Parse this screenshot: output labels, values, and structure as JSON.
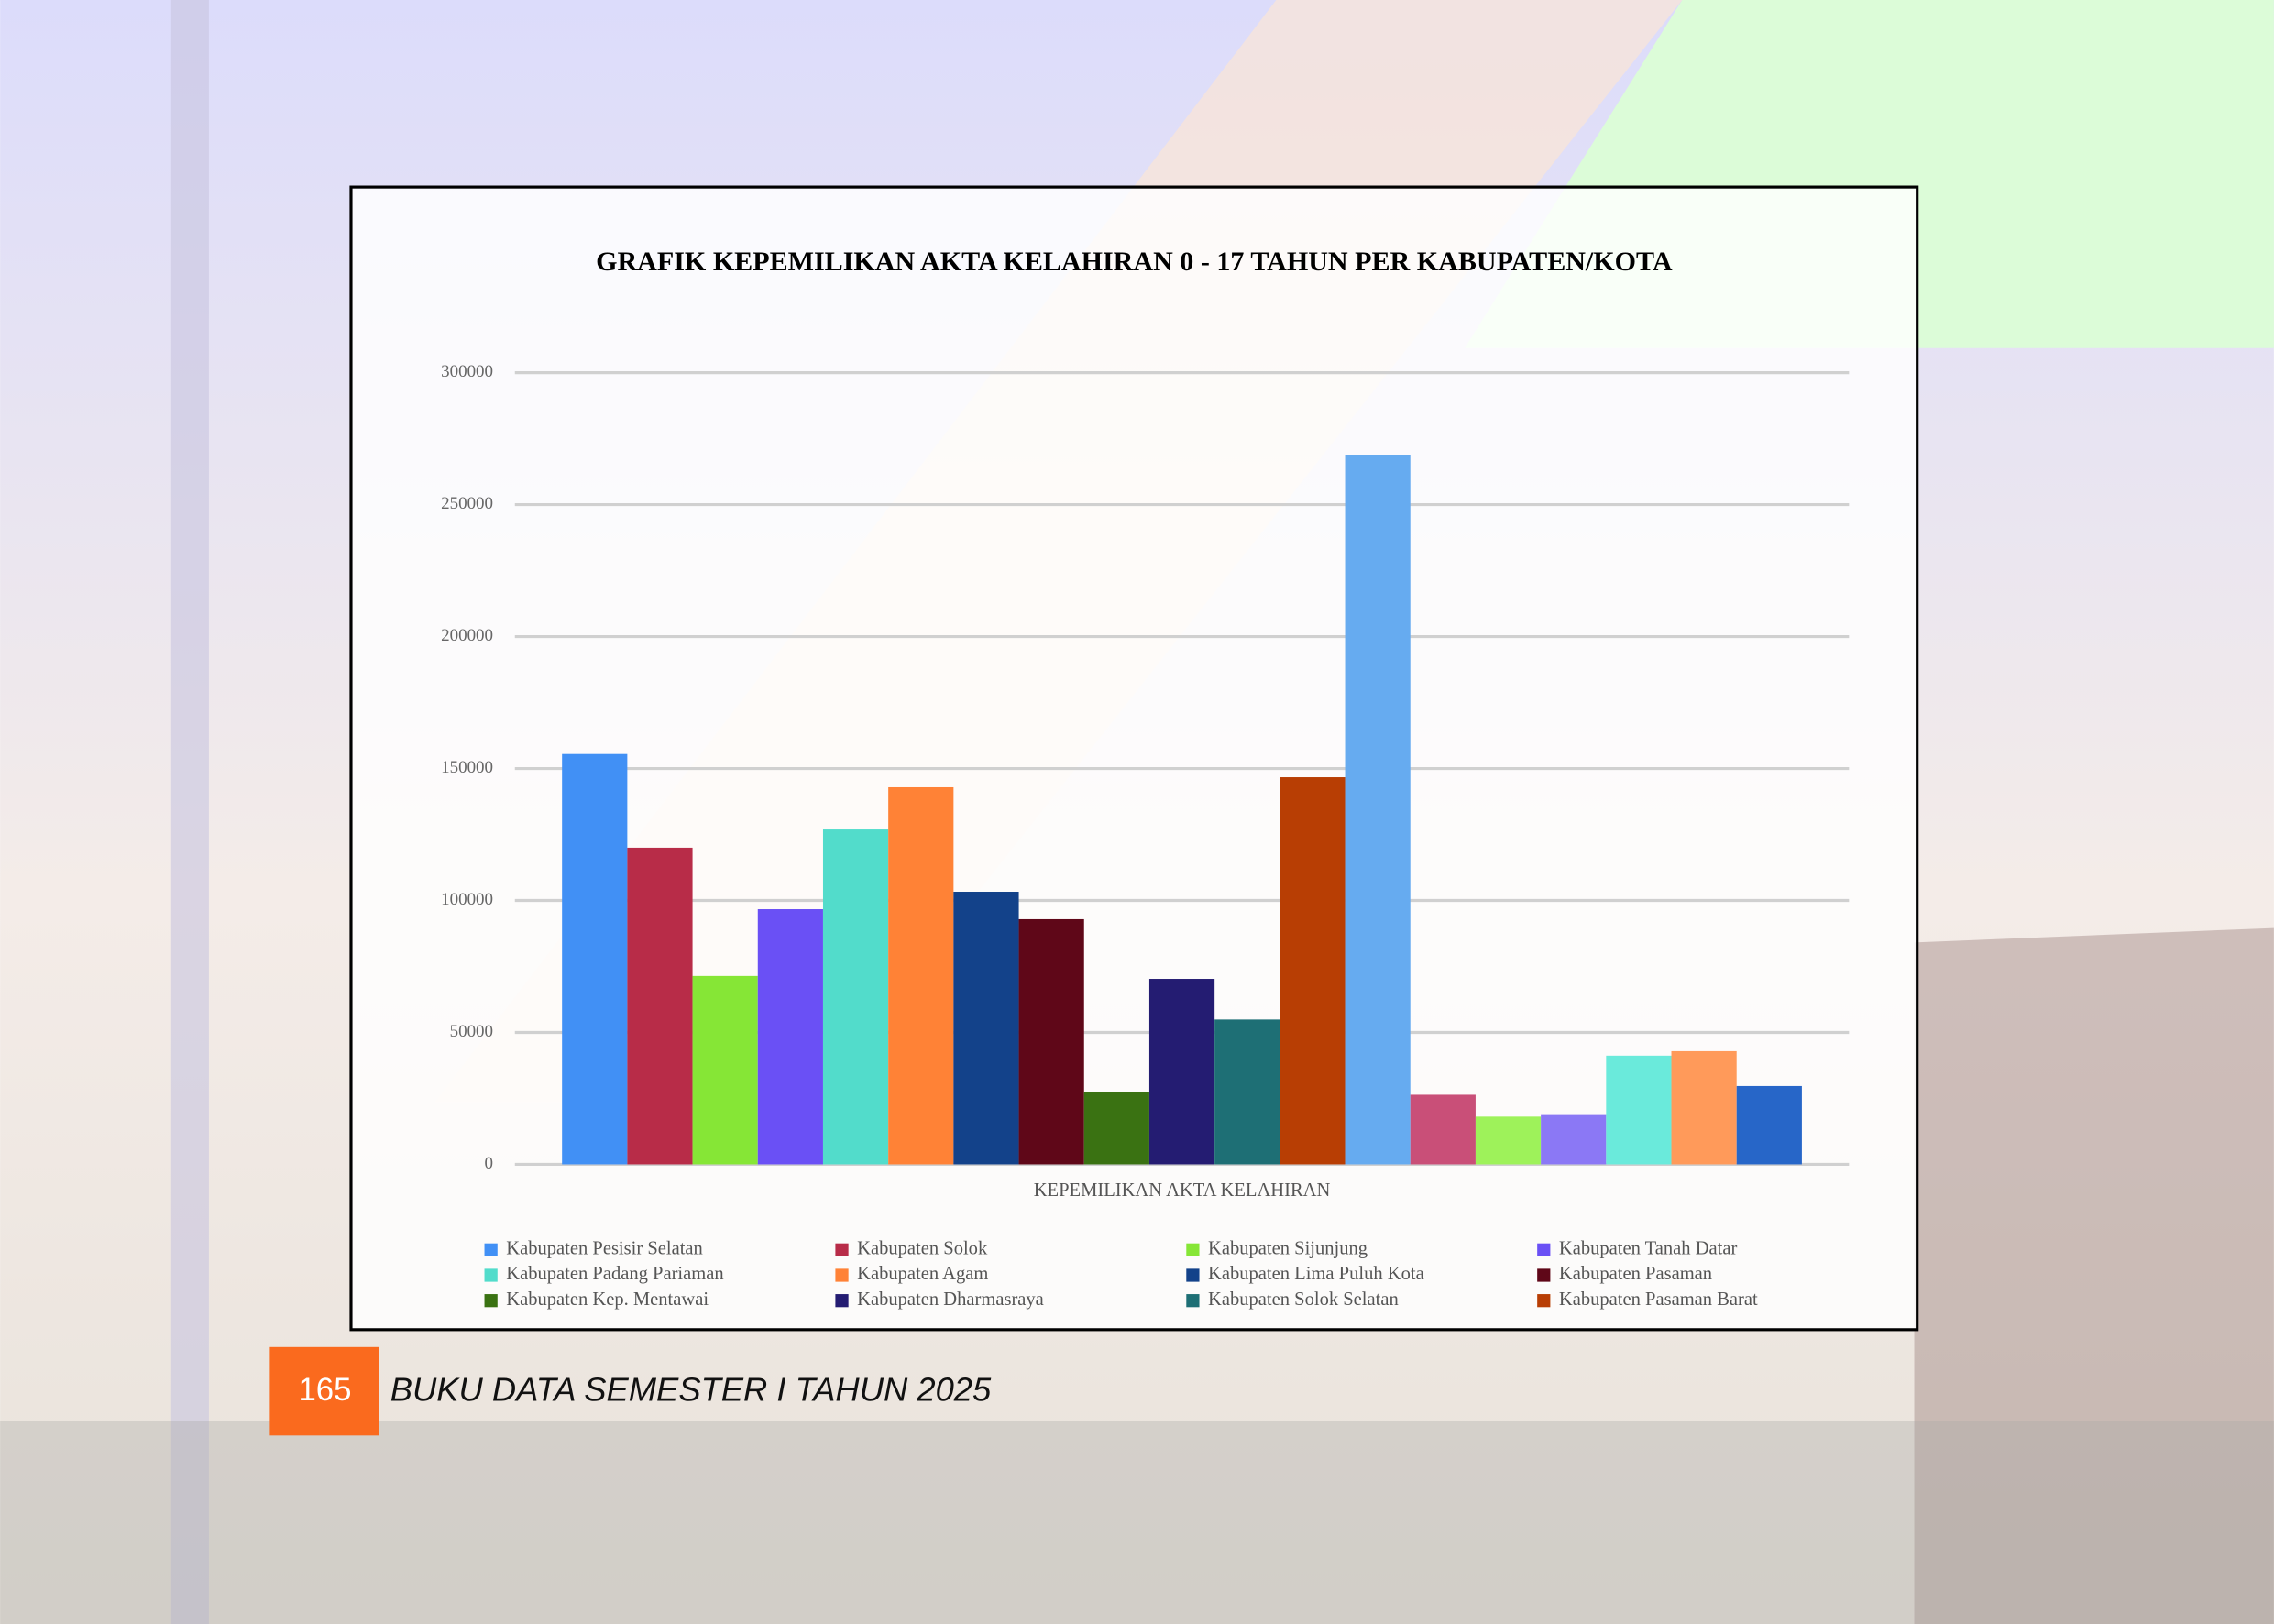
{
  "page": {
    "number": "165",
    "footer_title": "BUKU DATA SEMESTER I TAHUN 2025"
  },
  "chart_data": {
    "type": "bar",
    "title": "GRAFIK KEPEMILIKAN AKTA KELAHIRAN 0 - 17 TAHUN PER KABUPATEN/KOTA",
    "x_label": "KEPEMILIKAN AKTA KELAHIRAN",
    "ylim": [
      0,
      300000
    ],
    "yticks": [
      0,
      50000,
      100000,
      150000,
      200000,
      250000,
      300000
    ],
    "grid": true,
    "series": [
      {
        "name": "Kabupaten Pesisir Selatan",
        "color": "#4190f5",
        "values": [
          155500
        ]
      },
      {
        "name": "Kabupaten Solok",
        "color": "#b82c48",
        "values": [
          120000
        ]
      },
      {
        "name": "Kabupaten Sijunjung",
        "color": "#86e636",
        "values": [
          71400
        ]
      },
      {
        "name": "Kabupaten Tanah Datar",
        "color": "#6a50f5",
        "values": [
          96700
        ]
      },
      {
        "name": "Kabupaten Padang Pariaman",
        "color": "#52dccb",
        "values": [
          126900
        ]
      },
      {
        "name": "Kabupaten Agam",
        "color": "#ff8236",
        "values": [
          142900
        ]
      },
      {
        "name": "Kabupaten Lima Puluh Kota",
        "color": "#13428a",
        "values": [
          103300
        ]
      },
      {
        "name": "Kabupaten Pasaman",
        "color": "#5f0718",
        "values": [
          92900
        ]
      },
      {
        "name": "Kabupaten Kep. Mentawai",
        "color": "#3a7212",
        "values": [
          27500
        ]
      },
      {
        "name": "Kabupaten Dharmasraya",
        "color": "#241c72",
        "values": [
          70300
        ]
      },
      {
        "name": "Kabupaten Solok Selatan",
        "color": "#1e6f75",
        "values": [
          54900
        ]
      },
      {
        "name": "Kabupaten Pasaman Barat",
        "color": "#b83e04",
        "values": [
          146700
        ]
      },
      {
        "color": "#66abf0",
        "values": [
          268700
        ]
      },
      {
        "color": "#c94f78",
        "values": [
          26400
        ]
      },
      {
        "color": "#9ef25a",
        "values": [
          18100
        ]
      },
      {
        "color": "#8b78f5",
        "values": [
          18700
        ]
      },
      {
        "color": "#6aeadb",
        "values": [
          41200
        ]
      },
      {
        "color": "#ff9a5a",
        "values": [
          42900
        ]
      },
      {
        "color": "#2766c8",
        "values": [
          29700
        ]
      }
    ]
  }
}
